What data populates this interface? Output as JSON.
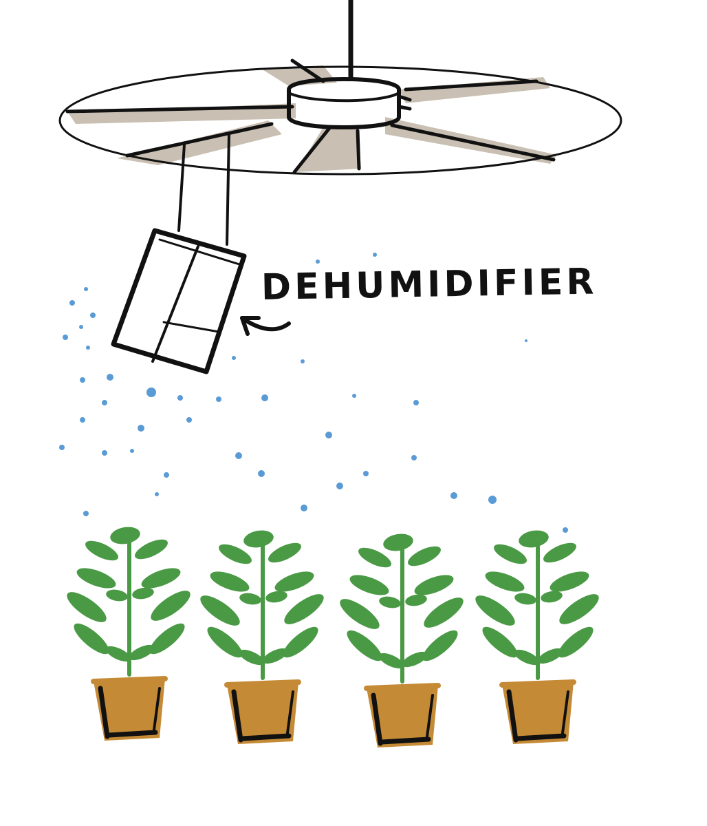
{
  "label": {
    "text": "DEHUMIDIFIER"
  },
  "colors": {
    "ink": "#111111",
    "fan_blade": "#c9bfb3",
    "droplet": "#5a9bd5",
    "leaf": "#4a9a45",
    "pot": "#c58a35"
  },
  "plants": {
    "count": 4
  }
}
